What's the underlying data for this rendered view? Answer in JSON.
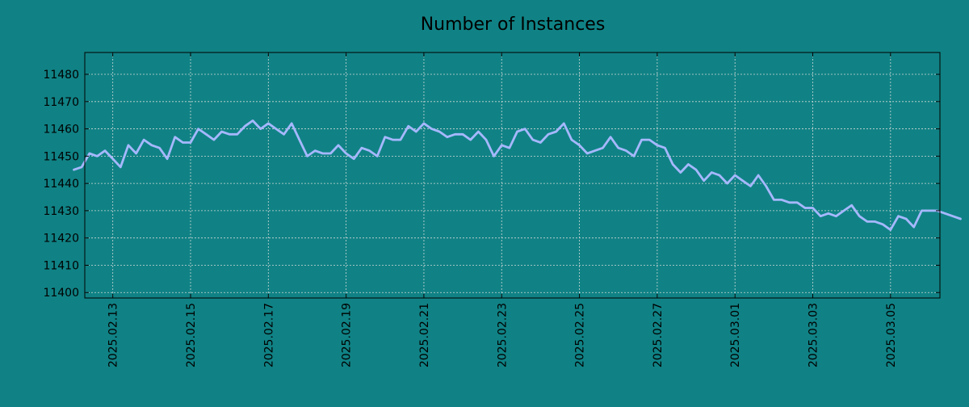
{
  "chart_data": {
    "type": "line",
    "title": "Number of Instances",
    "xlabel": "",
    "ylabel": "",
    "x_ticks": [
      "2025.02.13",
      "2025.02.15",
      "2025.02.17",
      "2025.02.19",
      "2025.02.21",
      "2025.02.23",
      "2025.02.25",
      "2025.02.27",
      "2025.03.01",
      "2025.03.03",
      "2025.03.05"
    ],
    "y_ticks": [
      11400,
      11410,
      11420,
      11430,
      11440,
      11450,
      11460,
      11470,
      11480
    ],
    "xlim": [
      "2025.02.12",
      "2025.03.06"
    ],
    "ylim": [
      11398,
      11488
    ],
    "grid": true,
    "legend": "none",
    "colors": {
      "background": "#108285",
      "line": "#a6b8ff",
      "grid": "#cfd8d8",
      "axis": "#000000"
    },
    "series": [
      {
        "x": [
          "2025.02.12",
          "2025.02.12",
          "2025.02.12",
          "2025.02.12",
          "2025.02.12",
          "2025.02.13",
          "2025.02.13",
          "2025.02.13",
          "2025.02.13",
          "2025.02.13",
          "2025.02.14",
          "2025.02.14",
          "2025.02.14",
          "2025.02.14",
          "2025.02.14",
          "2025.02.15",
          "2025.02.15",
          "2025.02.15",
          "2025.02.15",
          "2025.02.15",
          "2025.02.16",
          "2025.02.16",
          "2025.02.16",
          "2025.02.16",
          "2025.02.16",
          "2025.02.17",
          "2025.02.17",
          "2025.02.17",
          "2025.02.17",
          "2025.02.17",
          "2025.02.18",
          "2025.02.18",
          "2025.02.18",
          "2025.02.18",
          "2025.02.18",
          "2025.02.19",
          "2025.02.19",
          "2025.02.19",
          "2025.02.19",
          "2025.02.19",
          "2025.02.20",
          "2025.02.20",
          "2025.02.20",
          "2025.02.20",
          "2025.02.20",
          "2025.02.21",
          "2025.02.21",
          "2025.02.21",
          "2025.02.21",
          "2025.02.21",
          "2025.02.22",
          "2025.02.22",
          "2025.02.22",
          "2025.02.22",
          "2025.02.22",
          "2025.02.23",
          "2025.02.23",
          "2025.02.23",
          "2025.02.23",
          "2025.02.23",
          "2025.02.24",
          "2025.02.24",
          "2025.02.24",
          "2025.02.24",
          "2025.02.24",
          "2025.02.25",
          "2025.02.25",
          "2025.02.25",
          "2025.02.25",
          "2025.02.25",
          "2025.02.26",
          "2025.02.26",
          "2025.02.26",
          "2025.02.26",
          "2025.02.26",
          "2025.02.27",
          "2025.02.27",
          "2025.02.27",
          "2025.02.27",
          "2025.02.27",
          "2025.02.28",
          "2025.02.28",
          "2025.02.28",
          "2025.02.28",
          "2025.02.28",
          "2025.03.01",
          "2025.03.01",
          "2025.03.01",
          "2025.03.01",
          "2025.03.01",
          "2025.03.02",
          "2025.03.02",
          "2025.03.02",
          "2025.03.02",
          "2025.03.02",
          "2025.03.03",
          "2025.03.03",
          "2025.03.03",
          "2025.03.03",
          "2025.03.03",
          "2025.03.04",
          "2025.03.04",
          "2025.03.04",
          "2025.03.04",
          "2025.03.04",
          "2025.03.05",
          "2025.03.05",
          "2025.03.05",
          "2025.03.05",
          "2025.03.05",
          "2025.03.06",
          "2025.03.06",
          "2025.03.06",
          "2025.03.06",
          "2025.03.06"
        ],
        "values": [
          11445,
          11446,
          11451,
          11450,
          11452,
          11449,
          11446,
          11454,
          11451,
          11456,
          11454,
          11453,
          11449,
          11457,
          11455,
          11455,
          11460,
          11458,
          11456,
          11459,
          11458,
          11458,
          11461,
          11463,
          11460,
          11462,
          11460,
          11458,
          11462,
          11456,
          11450,
          11452,
          11451,
          11451,
          11454,
          11451,
          11449,
          11453,
          11452,
          11450,
          11457,
          11456,
          11456,
          11461,
          11459,
          11462,
          11460,
          11459,
          11457,
          11458,
          11458,
          11456,
          11459,
          11456,
          11450,
          11454,
          11453,
          11459,
          11460,
          11456,
          11455,
          11458,
          11459,
          11462,
          11456,
          11454,
          11451,
          11452,
          11453,
          11457,
          11453,
          11452,
          11450,
          11456,
          11456,
          11454,
          11453,
          11447,
          11444,
          11447,
          11445,
          11441,
          11444,
          11443,
          11440,
          11443,
          11441,
          11439,
          11443,
          11439,
          11434,
          11434,
          11433,
          11433,
          11431,
          11431,
          11428,
          11429,
          11428,
          11430,
          11432,
          11428,
          11426,
          11426,
          11425,
          11423,
          11428,
          11427,
          11424,
          11430,
          11430,
          11430,
          11429,
          11428,
          11427
        ]
      }
    ]
  }
}
